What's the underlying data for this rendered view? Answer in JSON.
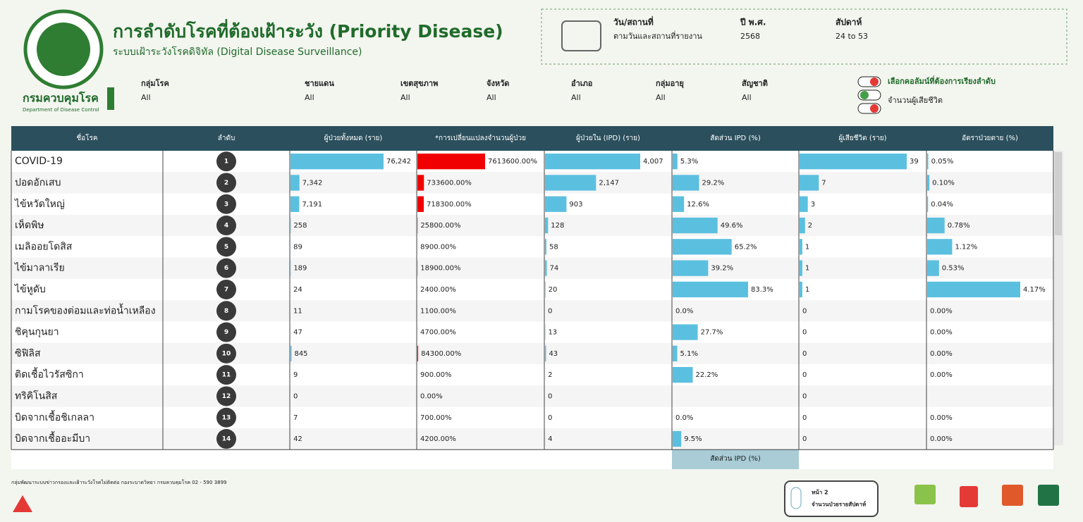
{
  "header": {
    "title": "การลำดับโรคที่ต้องเฝ้าระวัง (Priority Disease)",
    "subtitle": "ระบบเฝ้าระวังโรคดิจิทัล (Digital Disease Surveillance)",
    "org_th": "กรมควบคุมโรค",
    "org_en": "Department of Disease Control"
  },
  "info": [
    {
      "label": "วัน/สถานที่",
      "value": "ตามวันและสถานที่รายงาน"
    },
    {
      "label": "ปี พ.ศ.",
      "value": "2568"
    },
    {
      "label": "สัปดาห์",
      "value": "24 to 53"
    }
  ],
  "filters": [
    {
      "label": "กลุ่มโรค",
      "value": "All"
    },
    {
      "label": "ชายแดน",
      "value": "All"
    },
    {
      "label": "เขตสุขภาพ",
      "value": "All"
    },
    {
      "label": "จังหวัด",
      "value": "All"
    },
    {
      "label": "อำเภอ",
      "value": "All"
    },
    {
      "label": "กลุ่มอายุ",
      "value": "All"
    },
    {
      "label": "สัญชาติ",
      "value": "All"
    }
  ],
  "sort": {
    "title": "เลือกคอลัมน์ที่ต้องการเรียงลำดับ",
    "option": "จำนวนผู้เสียชีวิต"
  },
  "table": {
    "columns": [
      "ชื่อโรค",
      "ลำดับ",
      "ผู้ป่วยทั้งหมด (ราย)",
      "*การเปลี่ยนแปลงจำนวนผู้ป่วย",
      "ผู้ป่วยใน (IPD) (ราย)",
      "สัดส่วน IPD (%)",
      "ผู้เสียชีวิต (ราย)",
      "อัตราป่วยตาย (%)"
    ],
    "rows": [
      {
        "name": "COVID-19",
        "rank": 1,
        "total": {
          "value": 76242,
          "label": "76,242"
        },
        "change": {
          "value": 7613600,
          "label": "7613600.00%"
        },
        "ipd": {
          "value": 4007,
          "label": "4,007"
        },
        "ipd_pct": {
          "value": 5.3,
          "label": "5.3%"
        },
        "deaths": 39,
        "cfr": {
          "value": 0.05,
          "label": "0.05%"
        }
      },
      {
        "name": "ปอดอักเสบ",
        "rank": 2,
        "total": {
          "value": 7342,
          "label": "7,342"
        },
        "change": {
          "value": 733600,
          "label": "733600.00%"
        },
        "ipd": {
          "value": 2147,
          "label": "2,147"
        },
        "ipd_pct": {
          "value": 29.2,
          "label": "29.2%"
        },
        "deaths": 7,
        "cfr": {
          "value": 0.1,
          "label": "0.10%"
        }
      },
      {
        "name": "ไข้หวัดใหญ่",
        "rank": 3,
        "total": {
          "value": 7191,
          "label": "7,191"
        },
        "change": {
          "value": 718300,
          "label": "718300.00%"
        },
        "ipd": 903,
        "ipd_pct": {
          "value": 12.6,
          "label": "12.6%"
        },
        "deaths": 3,
        "cfr": {
          "value": 0.04,
          "label": "0.04%"
        }
      },
      {
        "name": "เห็ดพิษ",
        "rank": 4,
        "total": 258,
        "change": {
          "value": 25800,
          "label": "25800.00%"
        },
        "ipd": 128,
        "ipd_pct": {
          "value": 49.6,
          "label": "49.6%"
        },
        "deaths": 2,
        "cfr": {
          "value": 0.78,
          "label": "0.78%"
        }
      },
      {
        "name": "เมลิออยโดสิส",
        "rank": 5,
        "total": 89,
        "change": {
          "value": 8900,
          "label": "8900.00%"
        },
        "ipd": 58,
        "ipd_pct": {
          "value": 65.2,
          "label": "65.2%"
        },
        "deaths": 1,
        "cfr": {
          "value": 1.12,
          "label": "1.12%"
        }
      },
      {
        "name": "ไข้มาลาเรีย",
        "rank": 6,
        "total": 189,
        "change": {
          "value": 18900,
          "label": "18900.00%"
        },
        "ipd": 74,
        "ipd_pct": {
          "value": 39.2,
          "label": "39.2%"
        },
        "deaths": 1,
        "cfr": {
          "value": 0.53,
          "label": "0.53%"
        }
      },
      {
        "name": "ไข้หูดับ",
        "rank": 7,
        "total": 24,
        "change": {
          "value": 2400,
          "label": "2400.00%"
        },
        "ipd": 20,
        "ipd_pct": {
          "value": 83.3,
          "label": "83.3%"
        },
        "deaths": 1,
        "cfr": {
          "value": 4.17,
          "label": "4.17%"
        }
      },
      {
        "name": "กามโรคของต่อมและท่อน้ำเหลือง",
        "rank": 8,
        "total": 11,
        "change": {
          "value": 1100,
          "label": "1100.00%"
        },
        "ipd": 0,
        "ipd_pct": {
          "value": 0,
          "label": "0.0%"
        },
        "deaths": 0,
        "cfr": {
          "value": 0,
          "label": "0.00%"
        }
      },
      {
        "name": "ชิคุนกุนยา",
        "rank": 9,
        "total": 47,
        "change": {
          "value": 4700,
          "label": "4700.00%"
        },
        "ipd": 13,
        "ipd_pct": {
          "value": 27.7,
          "label": "27.7%"
        },
        "deaths": 0,
        "cfr": {
          "value": 0,
          "label": "0.00%"
        }
      },
      {
        "name": "ซิฟิลิส",
        "rank": 10,
        "total": 845,
        "change": {
          "value": 84300,
          "label": "84300.00%"
        },
        "ipd": 43,
        "ipd_pct": {
          "value": 5.1,
          "label": "5.1%"
        },
        "deaths": 0,
        "cfr": {
          "value": 0,
          "label": "0.00%"
        }
      },
      {
        "name": "ติดเชื้อไวรัสซิกา",
        "rank": 11,
        "total": 9,
        "change": {
          "value": 900,
          "label": "900.00%"
        },
        "ipd": 2,
        "ipd_pct": {
          "value": 22.2,
          "label": "22.2%"
        },
        "deaths": 0,
        "cfr": {
          "value": 0,
          "label": "0.00%"
        }
      },
      {
        "name": "ทริคิโนสิส",
        "rank": 12,
        "total": 0,
        "change": {
          "value": 0,
          "label": "0.00%"
        },
        "ipd": 0,
        "ipd_pct": null,
        "deaths": 0,
        "cfr": null
      },
      {
        "name": "บิดจากเชื้อชิเกลลา",
        "rank": 13,
        "total": 7,
        "change": {
          "value": 700,
          "label": "700.00%"
        },
        "ipd": 0,
        "ipd_pct": {
          "value": 0,
          "label": "0.0%"
        },
        "deaths": 0,
        "cfr": {
          "value": 0,
          "label": "0.00%"
        }
      },
      {
        "name": "บิดจากเชื้ออะมีบา",
        "rank": 14,
        "total": 42,
        "change": {
          "value": 4200,
          "label": "4200.00%"
        },
        "ipd": 4,
        "ipd_pct": {
          "value": 9.5,
          "label": "9.5%"
        },
        "deaths": 0,
        "cfr": {
          "value": 0,
          "label": "0.00%"
        }
      }
    ],
    "hover_label": "สัดส่วน IPD (%)"
  },
  "footer": {
    "note": "กลุ่มพัฒนาระบบข่าวกรองและเฝ้าระวังโรคไม่ติดต่อ กองระบาดวิทยา กรมควบคุมโรค 02 - 590 3899",
    "page_button": {
      "title": "หน้า 2",
      "subtitle": "จำนวนป่วยรายสัปดาห์"
    }
  }
}
